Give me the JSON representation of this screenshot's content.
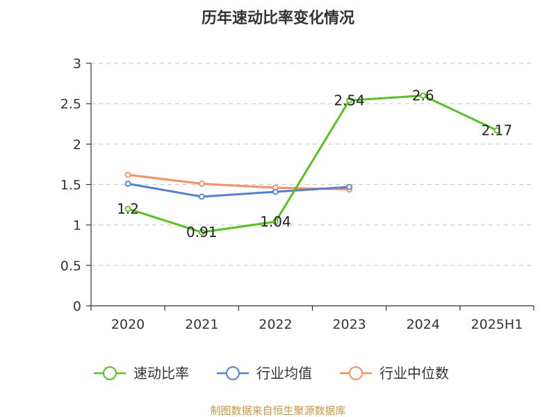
{
  "colors": {
    "series_1": "#52c41a",
    "series_2": "#4e7fdc",
    "series_3": "#ff8c5a",
    "grid": "#cccccc",
    "axis": "#333333",
    "source_text": "#c9963f"
  },
  "chart_data": {
    "type": "line",
    "title": "历年速动比率变化情况",
    "xlabel": "",
    "ylabel": "",
    "categories": [
      "2020",
      "2021",
      "2022",
      "2023",
      "2024",
      "2025H1"
    ],
    "ylim": [
      0,
      3
    ],
    "yticks": [
      "0",
      "0.5",
      "1",
      "1.5",
      "2",
      "2.5",
      "3"
    ],
    "grid": true,
    "legend_position": "bottom",
    "series": [
      {
        "name": "速动比率",
        "values": [
          1.2,
          0.91,
          1.04,
          2.54,
          2.6,
          2.17
        ],
        "labels": [
          "1.2",
          "0.91",
          "1.04",
          "2.54",
          "2.6",
          "2.17"
        ]
      },
      {
        "name": "行业均值",
        "values": [
          1.51,
          1.35,
          1.41,
          1.47,
          null,
          null
        ]
      },
      {
        "name": "行业中位数",
        "values": [
          1.62,
          1.51,
          1.46,
          1.44,
          null,
          null
        ]
      }
    ]
  },
  "footer": {
    "source": "制图数据来自恒生聚源数据库"
  }
}
